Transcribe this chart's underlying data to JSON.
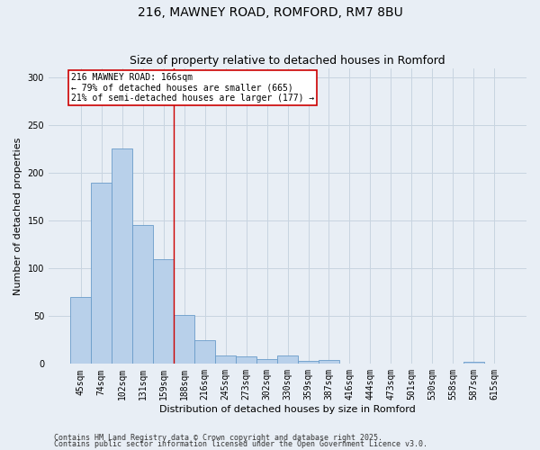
{
  "title1": "216, MAWNEY ROAD, ROMFORD, RM7 8BU",
  "title2": "Size of property relative to detached houses in Romford",
  "xlabel": "Distribution of detached houses by size in Romford",
  "ylabel": "Number of detached properties",
  "categories": [
    "45sqm",
    "74sqm",
    "102sqm",
    "131sqm",
    "159sqm",
    "188sqm",
    "216sqm",
    "245sqm",
    "273sqm",
    "302sqm",
    "330sqm",
    "359sqm",
    "387sqm",
    "416sqm",
    "444sqm",
    "473sqm",
    "501sqm",
    "530sqm",
    "558sqm",
    "587sqm",
    "615sqm"
  ],
  "values": [
    70,
    190,
    226,
    146,
    110,
    51,
    25,
    9,
    8,
    5,
    9,
    3,
    4,
    0,
    0,
    0,
    0,
    0,
    0,
    2,
    0
  ],
  "bar_color": "#b8d0ea",
  "bar_edge_color": "#6a9cc9",
  "grid_color": "#c8d4e0",
  "bg_color": "#e8eef5",
  "annotation_line1": "216 MAWNEY ROAD: 166sqm",
  "annotation_line2": "← 79% of detached houses are smaller (665)",
  "annotation_line3": "21% of semi-detached houses are larger (177) →",
  "annotation_box_facecolor": "#ffffff",
  "annotation_box_edgecolor": "#cc0000",
  "vline_color": "#cc0000",
  "vline_x": 4.5,
  "ylim": [
    0,
    310
  ],
  "yticks": [
    0,
    50,
    100,
    150,
    200,
    250,
    300
  ],
  "footnote1": "Contains HM Land Registry data © Crown copyright and database right 2025.",
  "footnote2": "Contains public sector information licensed under the Open Government Licence v3.0.",
  "title1_fontsize": 10,
  "title2_fontsize": 9,
  "tick_fontsize": 7,
  "ylabel_fontsize": 8,
  "xlabel_fontsize": 8,
  "annotation_fontsize": 7,
  "footnote_fontsize": 6
}
